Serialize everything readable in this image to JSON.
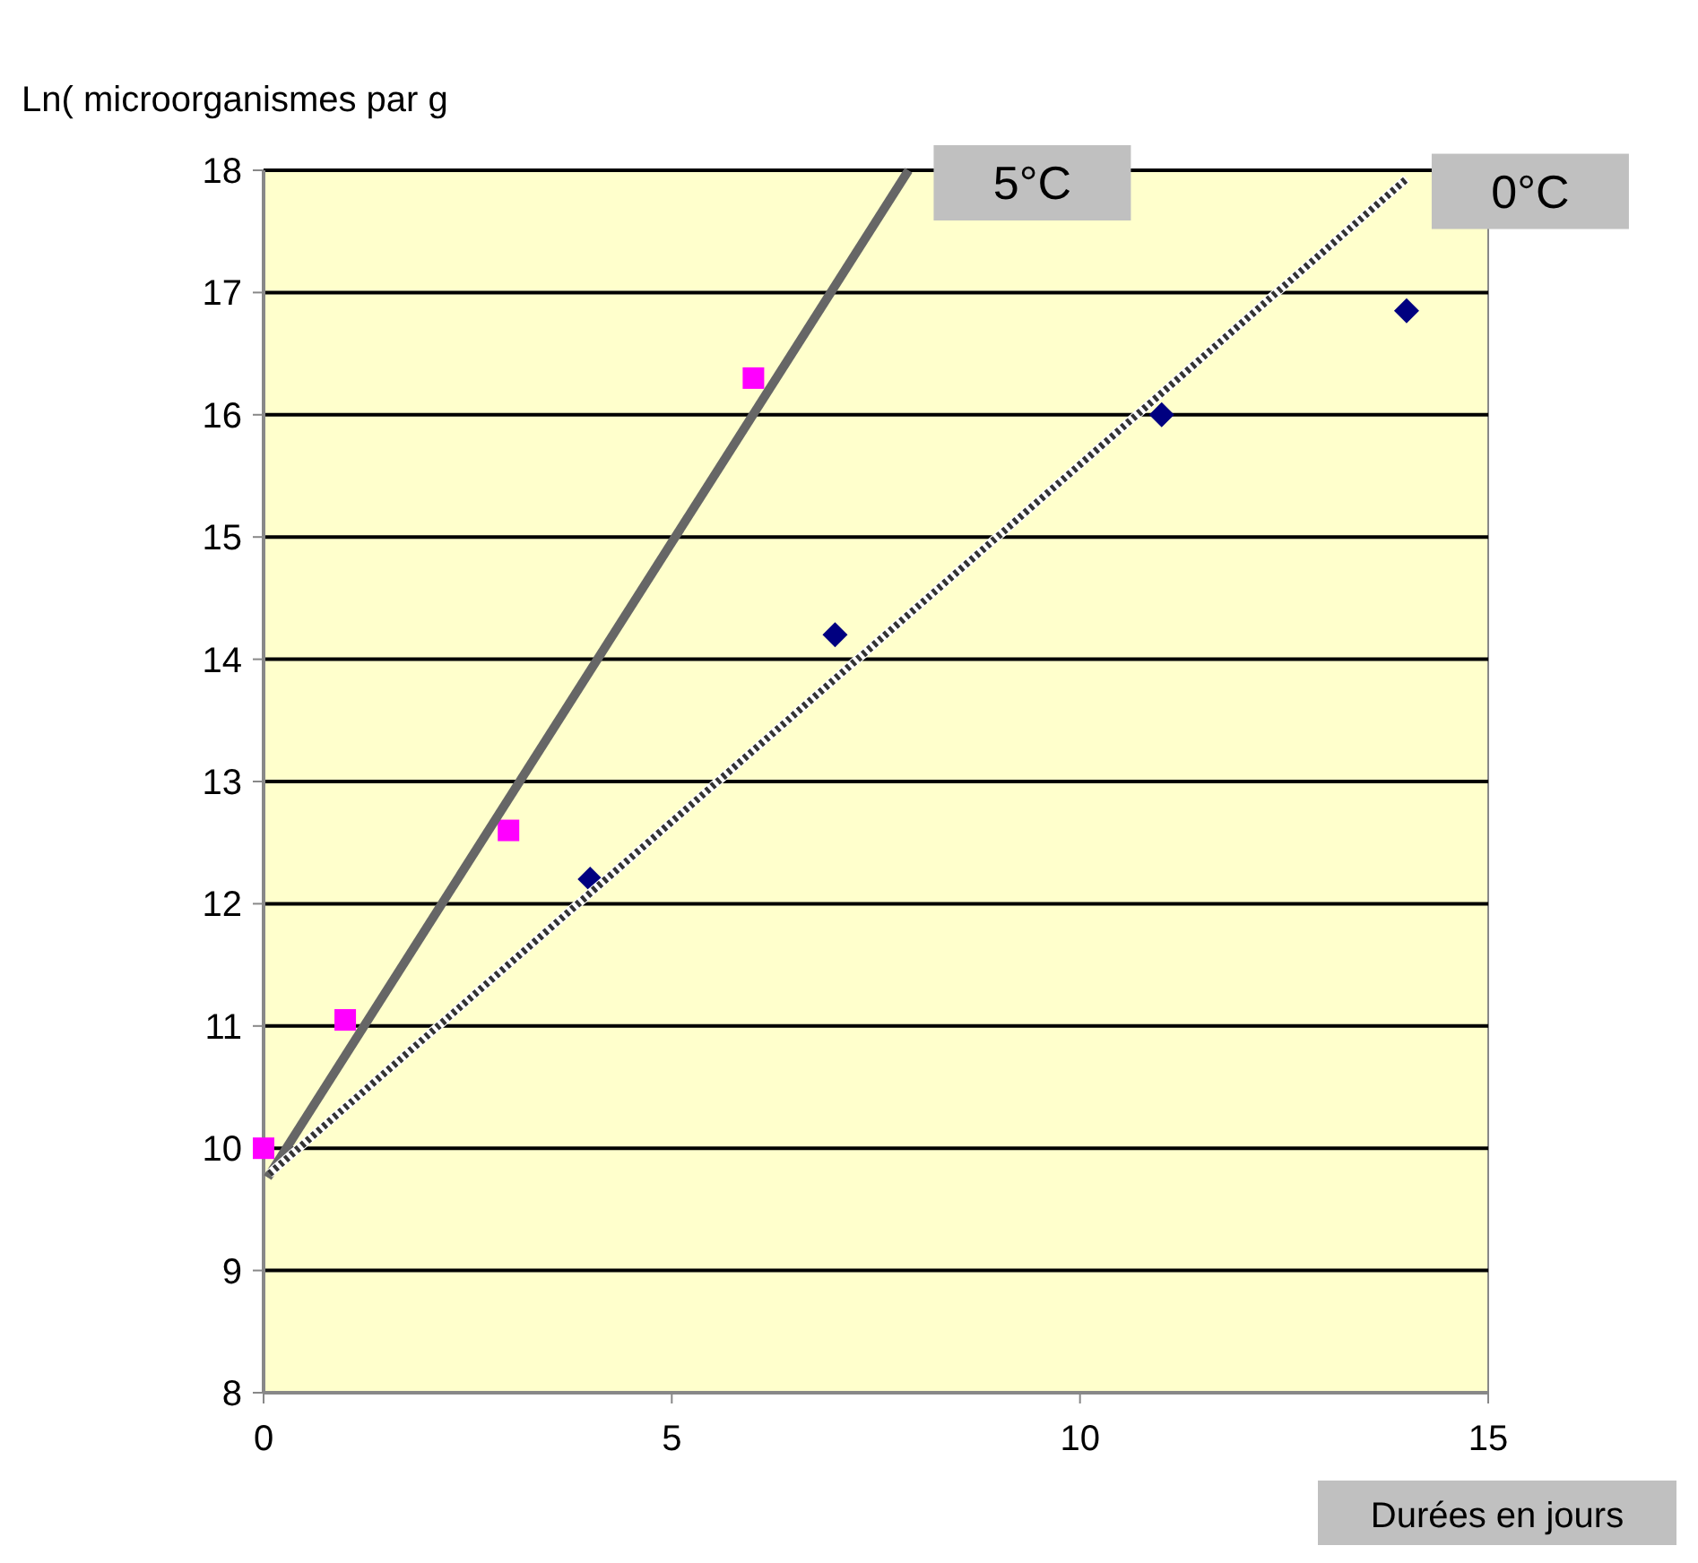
{
  "chart_data": {
    "type": "scatter",
    "ylabel": "Ln( microorganismes par g",
    "xlabel": "Durées en jours",
    "xlim": [
      0,
      15
    ],
    "xticks": [
      0,
      5,
      10,
      15
    ],
    "ylim": [
      8,
      18
    ],
    "yticks": [
      8,
      9,
      10,
      11,
      12,
      13,
      14,
      15,
      16,
      17,
      18
    ],
    "grid": "y",
    "series": [
      {
        "color": "#ff00ff",
        "marker": "square",
        "x": [
          0,
          1,
          3,
          6
        ],
        "values": [
          10,
          11.05,
          12.6,
          16.3
        ]
      },
      {
        "color": "#000080",
        "marker": "diamond",
        "x": [
          4,
          7,
          11,
          14
        ],
        "values": [
          12.2,
          14.2,
          16.0,
          16.85
        ]
      },
      {
        "type": "line",
        "name": "5°C",
        "color": "#666666",
        "line_style": "solid",
        "x": [
          0.05,
          7.9
        ],
        "values": [
          9.76,
          18
        ]
      },
      {
        "type": "line",
        "name": "0°C",
        "color": "#333333",
        "line_style": "dotted",
        "x": [
          0.07,
          14.0
        ],
        "values": [
          9.79,
          17.93
        ]
      }
    ]
  }
}
